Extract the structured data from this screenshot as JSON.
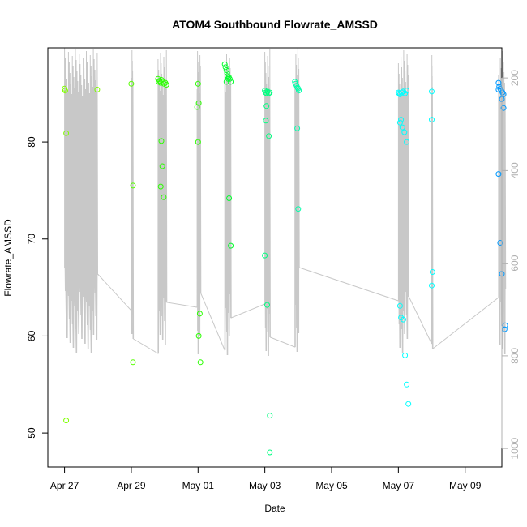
{
  "chart_data": {
    "type": "scatter",
    "title": "ATOM4 Southbound Flowrate_AMSSD",
    "xlabel": "Date",
    "ylabel": "Flowrate_AMSSD",
    "x_ticks": [
      "Apr 27",
      "Apr 29",
      "May 01",
      "May 03",
      "May 05",
      "May 07",
      "May 09"
    ],
    "x_tick_days": [
      0,
      2,
      4,
      6,
      8,
      10,
      12
    ],
    "xlim": [
      -0.5,
      13.1
    ],
    "ylim": [
      46.5,
      89.7
    ],
    "y_ticks": [
      50,
      60,
      70,
      80
    ],
    "y2_ticks": [
      200,
      400,
      600,
      800,
      1000
    ],
    "y2lim": [
      1040,
      135
    ],
    "grid": false,
    "series": [
      {
        "color": "#80ff00",
        "points": [
          [
            0.0,
            85.5
          ],
          [
            0.02,
            85.3
          ],
          [
            0.05,
            80.9
          ],
          [
            0.05,
            51.3
          ],
          [
            0.98,
            85.4
          ]
        ]
      },
      {
        "color": "#55ff00",
        "points": [
          [
            2.0,
            86.0
          ],
          [
            2.05,
            75.5
          ],
          [
            2.05,
            57.3
          ]
        ]
      },
      {
        "color": "#2bff00",
        "points": [
          [
            2.8,
            86.5
          ],
          [
            2.82,
            86.2
          ],
          [
            2.85,
            86.3
          ],
          [
            2.88,
            86.1
          ],
          [
            2.9,
            86.4
          ],
          [
            2.95,
            86.2
          ],
          [
            2.98,
            86.0
          ],
          [
            3.02,
            86.1
          ],
          [
            3.05,
            85.9
          ],
          [
            2.9,
            80.1
          ],
          [
            2.93,
            77.5
          ],
          [
            2.88,
            75.4
          ],
          [
            2.97,
            74.3
          ]
        ]
      },
      {
        "color": "#2bff00",
        "points": [
          [
            4.0,
            86.0
          ],
          [
            3.97,
            83.6
          ],
          [
            4.02,
            84.0
          ],
          [
            4.0,
            80.0
          ],
          [
            4.05,
            62.3
          ],
          [
            4.02,
            60.0
          ],
          [
            4.07,
            57.3
          ]
        ]
      },
      {
        "color": "#00ff2b",
        "points": [
          [
            4.8,
            88.0
          ],
          [
            4.82,
            87.7
          ],
          [
            4.85,
            87.4
          ],
          [
            4.87,
            87.1
          ],
          [
            4.88,
            86.8
          ],
          [
            4.9,
            86.5
          ],
          [
            4.92,
            86.7
          ],
          [
            4.95,
            86.5
          ],
          [
            4.98,
            86.2
          ],
          [
            4.85,
            86.2
          ],
          [
            4.93,
            74.2
          ],
          [
            4.98,
            69.3
          ]
        ]
      },
      {
        "color": "#00ff80",
        "points": [
          [
            6.0,
            85.3
          ],
          [
            6.02,
            85.1
          ],
          [
            6.05,
            85.0
          ],
          [
            6.08,
            85.2
          ],
          [
            6.12,
            85.0
          ],
          [
            6.15,
            85.1
          ],
          [
            6.05,
            83.7
          ],
          [
            6.03,
            82.2
          ],
          [
            6.12,
            80.6
          ],
          [
            6.0,
            68.3
          ],
          [
            6.07,
            63.2
          ],
          [
            6.15,
            51.8
          ],
          [
            6.15,
            48.0
          ]
        ]
      },
      {
        "color": "#00ffaa",
        "points": [
          [
            6.9,
            86.2
          ],
          [
            6.92,
            86.0
          ],
          [
            6.95,
            85.8
          ],
          [
            6.98,
            85.6
          ],
          [
            7.0,
            85.5
          ],
          [
            7.02,
            85.3
          ],
          [
            6.97,
            81.4
          ],
          [
            7.0,
            73.1
          ]
        ]
      },
      {
        "color": "#00ffff",
        "points": [
          [
            10.0,
            85.1
          ],
          [
            10.02,
            85.0
          ],
          [
            10.05,
            84.9
          ],
          [
            10.1,
            85.1
          ],
          [
            10.15,
            85.2
          ],
          [
            10.2,
            85.0
          ],
          [
            10.25,
            85.3
          ],
          [
            10.05,
            82.0
          ],
          [
            10.08,
            82.3
          ],
          [
            10.12,
            81.5
          ],
          [
            10.18,
            81.0
          ],
          [
            10.25,
            80.0
          ],
          [
            10.05,
            63.1
          ],
          [
            10.08,
            61.9
          ],
          [
            10.15,
            61.7
          ],
          [
            10.2,
            58.0
          ],
          [
            10.25,
            55.0
          ],
          [
            10.3,
            53.0
          ]
        ]
      },
      {
        "color": "#00ffff",
        "points": [
          [
            11.0,
            85.2
          ],
          [
            11.0,
            82.3
          ],
          [
            11.02,
            66.6
          ],
          [
            11.0,
            65.2
          ]
        ]
      },
      {
        "color": "#0099ff",
        "points": [
          [
            13.0,
            86.1
          ],
          [
            13.02,
            85.7
          ],
          [
            13.05,
            85.5
          ],
          [
            13.08,
            85.3
          ],
          [
            13.12,
            85.1
          ],
          [
            13.15,
            84.9
          ],
          [
            13.0,
            85.4
          ],
          [
            13.1,
            84.4
          ],
          [
            13.15,
            83.5
          ],
          [
            13.0,
            76.7
          ],
          [
            13.05,
            69.6
          ],
          [
            13.1,
            66.4
          ],
          [
            13.2,
            61.1
          ],
          [
            13.18,
            60.7
          ]
        ]
      }
    ]
  }
}
